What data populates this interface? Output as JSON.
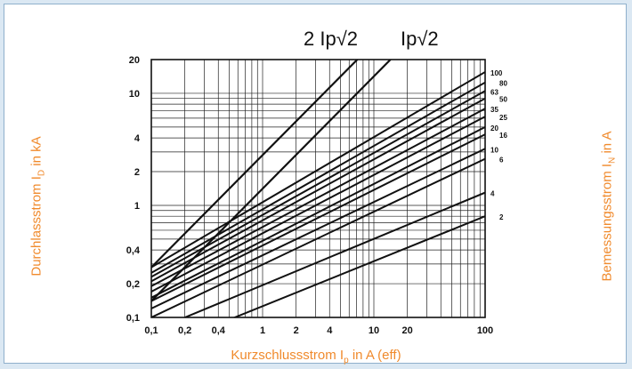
{
  "chart_data": {
    "type": "line",
    "xscale": "log",
    "yscale": "log",
    "xlim": [
      0.1,
      100
    ],
    "ylim": [
      0.1,
      20
    ],
    "x_ticks": [
      "0,1",
      "0,2",
      "0,4",
      "1",
      "2",
      "4",
      "10",
      "20",
      "100"
    ],
    "y_ticks": [
      "20",
      "10",
      "4",
      "2",
      "1",
      "0,4",
      "0,2",
      "0,1"
    ],
    "xlabel": {
      "main": "Kurzschlussstrom I",
      "sub": "p",
      "tail": " in A (eff)"
    },
    "ylabel_left": {
      "main": "Durchlassstrom I",
      "sub": "D",
      "tail": " in kA"
    },
    "ylabel_right": {
      "main": "Bemessungsstrom I",
      "sub": "N",
      "tail": " in A"
    },
    "top_labels": [
      "2 Ip√2",
      "Ip√2"
    ],
    "grid": true,
    "envelopes": [
      {
        "name": "2 Ip√2",
        "x": [
          0.1,
          7.1
        ],
        "y": [
          0.28,
          20
        ]
      },
      {
        "name": "Ip√2",
        "x": [
          0.1,
          14.1
        ],
        "y": [
          0.14,
          20
        ]
      }
    ],
    "series": [
      {
        "name": "100",
        "x": [
          0.1,
          100
        ],
        "y": [
          0.28,
          15.5
        ]
      },
      {
        "name": "80",
        "x": [
          0.1,
          100
        ],
        "y": [
          0.25,
          12.5
        ]
      },
      {
        "name": "63",
        "x": [
          0.1,
          100
        ],
        "y": [
          0.23,
          10.5
        ]
      },
      {
        "name": "50",
        "x": [
          0.1,
          100
        ],
        "y": [
          0.21,
          9
        ]
      },
      {
        "name": "35",
        "x": [
          0.1,
          100
        ],
        "y": [
          0.19,
          7.3
        ]
      },
      {
        "name": "25",
        "x": [
          0.1,
          100
        ],
        "y": [
          0.17,
          6.2
        ]
      },
      {
        "name": "20",
        "x": [
          0.1,
          100
        ],
        "y": [
          0.15,
          5
        ]
      },
      {
        "name": "16",
        "x": [
          0.1,
          100
        ],
        "y": [
          0.14,
          4.3
        ]
      },
      {
        "name": "10",
        "x": [
          0.1,
          100
        ],
        "y": [
          0.12,
          3.2
        ]
      },
      {
        "name": "6",
        "x": [
          0.1,
          100
        ],
        "y": [
          0.1,
          2.6
        ]
      },
      {
        "name": "4",
        "x": [
          0.1,
          100
        ],
        "y": [
          0.075,
          1.3
        ]
      },
      {
        "name": "2",
        "x": [
          0.1,
          100
        ],
        "y": [
          0.05,
          0.8
        ]
      }
    ]
  }
}
